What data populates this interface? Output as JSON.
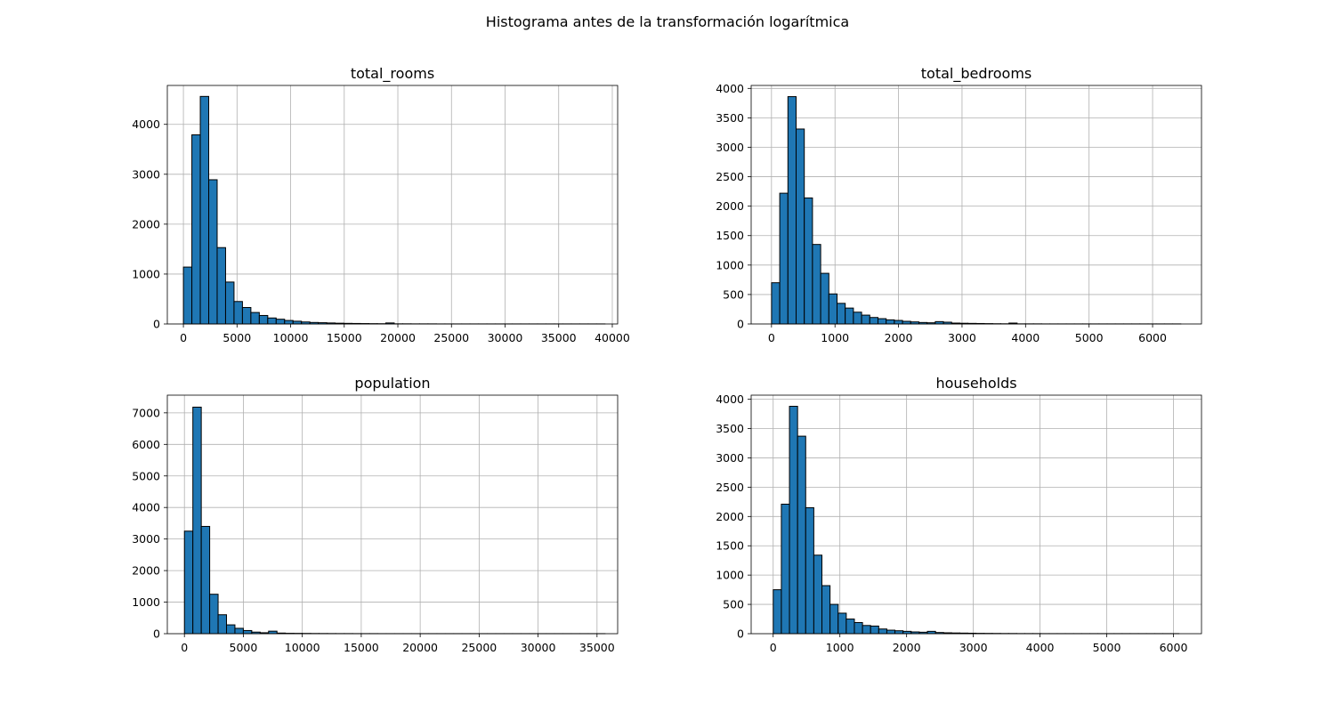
{
  "figure": {
    "suptitle": "Histograma antes de la transformación logarítmica"
  },
  "chart_data": [
    {
      "type": "bar",
      "title": "total_rooms",
      "xlabel": "",
      "ylabel": "",
      "bins": 50,
      "x_range": [
        2,
        39320
      ],
      "xlim": [
        -1500,
        40500
      ],
      "ylim": [
        0,
        4780
      ],
      "xticks": [
        0,
        5000,
        10000,
        15000,
        20000,
        25000,
        30000,
        35000,
        40000
      ],
      "yticks": [
        0,
        1000,
        2000,
        3000,
        4000
      ],
      "grid": true,
      "bar_color": "#1f77b4",
      "values": [
        1140,
        3790,
        4560,
        2890,
        1530,
        840,
        450,
        330,
        230,
        170,
        120,
        95,
        70,
        55,
        40,
        30,
        25,
        20,
        15,
        12,
        10,
        8,
        6,
        5,
        20,
        3,
        3,
        2,
        2,
        2,
        1,
        1,
        1,
        1,
        1,
        1,
        1,
        1,
        1,
        1,
        1,
        1,
        1,
        1,
        1,
        1,
        1,
        1,
        1,
        1
      ]
    },
    {
      "type": "bar",
      "title": "total_bedrooms",
      "xlabel": "",
      "ylabel": "",
      "bins": 50,
      "x_range": [
        1,
        6445
      ],
      "xlim": [
        -320,
        6770
      ],
      "ylim": [
        0,
        4050
      ],
      "xticks": [
        0,
        1000,
        2000,
        3000,
        4000,
        5000,
        6000
      ],
      "yticks": [
        0,
        500,
        1000,
        1500,
        2000,
        2500,
        3000,
        3500,
        4000
      ],
      "grid": true,
      "bar_color": "#1f77b4",
      "values": [
        700,
        2220,
        3860,
        3310,
        2140,
        1350,
        860,
        510,
        350,
        270,
        200,
        150,
        110,
        90,
        70,
        60,
        45,
        35,
        25,
        20,
        40,
        30,
        15,
        12,
        10,
        8,
        6,
        4,
        3,
        15,
        2,
        2,
        2,
        1,
        1,
        1,
        1,
        1,
        1,
        1,
        1,
        1,
        1,
        1,
        1,
        1,
        1,
        1,
        1,
        1
      ]
    },
    {
      "type": "bar",
      "title": "population",
      "xlabel": "",
      "ylabel": "",
      "bins": 50,
      "x_range": [
        3,
        35682
      ],
      "xlim": [
        -1450,
        36750
      ],
      "ylim": [
        0,
        7560
      ],
      "xticks": [
        0,
        5000,
        10000,
        15000,
        20000,
        25000,
        30000,
        35000
      ],
      "yticks": [
        0,
        1000,
        2000,
        3000,
        4000,
        5000,
        6000,
        7000
      ],
      "grid": true,
      "bar_color": "#1f77b4",
      "values": [
        3250,
        7180,
        3400,
        1250,
        600,
        280,
        170,
        100,
        50,
        30,
        80,
        20,
        12,
        10,
        8,
        6,
        5,
        4,
        3,
        3,
        2,
        2,
        2,
        1,
        1,
        1,
        1,
        1,
        1,
        1,
        1,
        1,
        1,
        1,
        1,
        1,
        1,
        1,
        1,
        1,
        1,
        1,
        1,
        1,
        1,
        1,
        1,
        1,
        1,
        1
      ]
    },
    {
      "type": "bar",
      "title": "households",
      "xlabel": "",
      "ylabel": "",
      "bins": 50,
      "x_range": [
        1,
        6082
      ],
      "xlim": [
        -330,
        6420
      ],
      "ylim": [
        0,
        4070
      ],
      "xticks": [
        0,
        1000,
        2000,
        3000,
        4000,
        5000,
        6000
      ],
      "yticks": [
        0,
        500,
        1000,
        1500,
        2000,
        2500,
        3000,
        3500,
        4000
      ],
      "grid": true,
      "bar_color": "#1f77b4",
      "values": [
        750,
        2210,
        3880,
        3370,
        2150,
        1340,
        820,
        500,
        350,
        250,
        190,
        140,
        130,
        80,
        60,
        50,
        40,
        30,
        25,
        40,
        20,
        15,
        12,
        10,
        8,
        6,
        5,
        4,
        3,
        3,
        2,
        2,
        2,
        1,
        1,
        1,
        1,
        1,
        1,
        1,
        1,
        1,
        1,
        1,
        1,
        1,
        1,
        1,
        1,
        1
      ]
    }
  ]
}
